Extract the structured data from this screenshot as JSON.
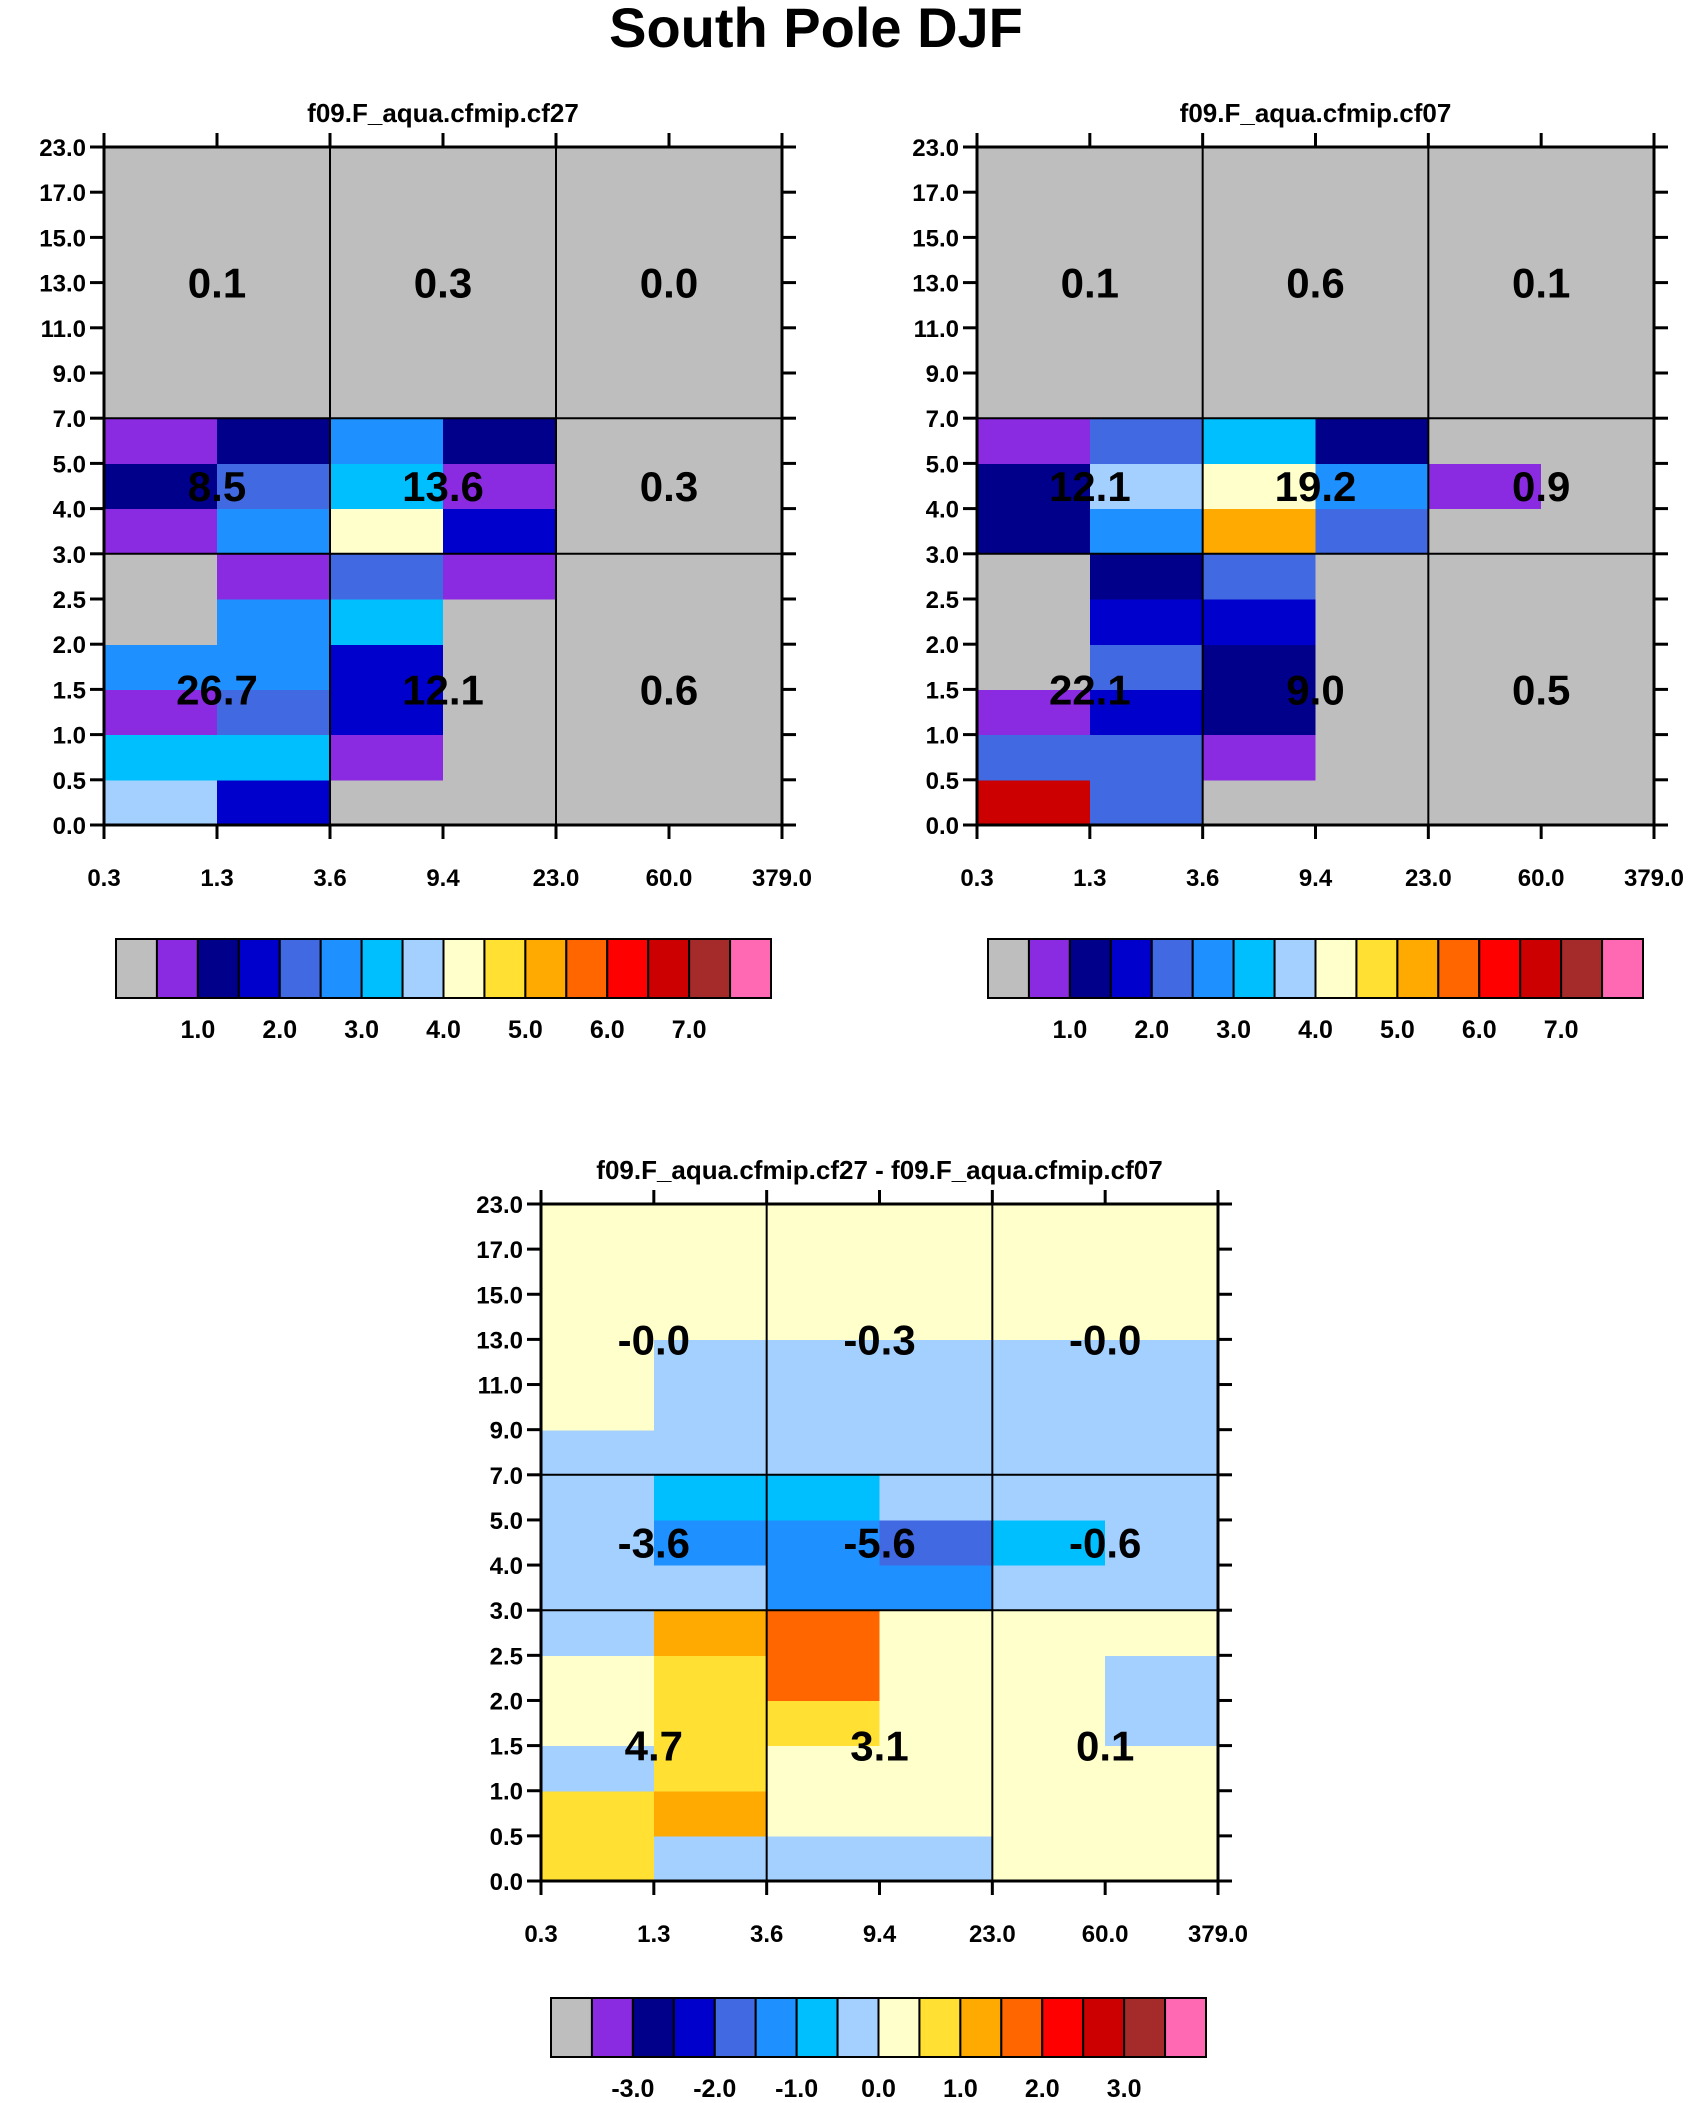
{
  "title": "South Pole DJF",
  "chart_data": [
    {
      "type": "heatmap",
      "title": "f09.F_aqua.cfmip.cf27",
      "x_ticks": [
        "0.3",
        "1.3",
        "3.6",
        "9.4",
        "23.0",
        "60.0",
        "379.0"
      ],
      "y_ticks": [
        "0.0",
        "0.5",
        "1.0",
        "1.5",
        "2.0",
        "2.5",
        "3.0",
        "4.0",
        "5.0",
        "7.0",
        "9.0",
        "11.0",
        "13.0",
        "15.0",
        "17.0",
        "23.0"
      ],
      "cells": [
        [
          7,
          3,
          0,
          0,
          0,
          0
        ],
        [
          6,
          6,
          1,
          0,
          0,
          0
        ],
        [
          1,
          4,
          3,
          0,
          0,
          0
        ],
        [
          5,
          5,
          3,
          0,
          0,
          0
        ],
        [
          0,
          5,
          6,
          0,
          0,
          0
        ],
        [
          0,
          1,
          4,
          1,
          0,
          0
        ],
        [
          1,
          5,
          8,
          3,
          0,
          0
        ],
        [
          2,
          4,
          6,
          1,
          0,
          0
        ],
        [
          1,
          2,
          5,
          2,
          0,
          0
        ],
        [
          0,
          0,
          0,
          0,
          0,
          0
        ],
        [
          0,
          0,
          0,
          0,
          0,
          0
        ],
        [
          0,
          0,
          0,
          0,
          0,
          0
        ],
        [
          0,
          0,
          0,
          0,
          0,
          0
        ],
        [
          0,
          0,
          0,
          0,
          0,
          0
        ],
        [
          0,
          0,
          0,
          0,
          0,
          0
        ]
      ],
      "summary": [
        [
          "26.7",
          "12.1",
          "0.6"
        ],
        [
          "8.5",
          "13.6",
          "0.3"
        ],
        [
          "0.1",
          "0.3",
          "0.0"
        ]
      ],
      "colorbar_labels": [
        "1.0",
        "2.0",
        "3.0",
        "4.0",
        "5.0",
        "6.0",
        "7.0"
      ]
    },
    {
      "type": "heatmap",
      "title": "f09.F_aqua.cfmip.cf07",
      "x_ticks": [
        "0.3",
        "1.3",
        "3.6",
        "9.4",
        "23.0",
        "60.0",
        "379.0"
      ],
      "y_ticks": [
        "0.0",
        "0.5",
        "1.0",
        "1.5",
        "2.0",
        "2.5",
        "3.0",
        "4.0",
        "5.0",
        "7.0",
        "9.0",
        "11.0",
        "13.0",
        "15.0",
        "17.0",
        "23.0"
      ],
      "cells": [
        [
          13,
          4,
          0,
          0,
          0,
          0
        ],
        [
          4,
          4,
          1,
          0,
          0,
          0
        ],
        [
          1,
          3,
          2,
          0,
          0,
          0
        ],
        [
          0,
          4,
          2,
          0,
          0,
          0
        ],
        [
          0,
          3,
          3,
          0,
          0,
          0
        ],
        [
          0,
          2,
          4,
          0,
          0,
          0
        ],
        [
          2,
          5,
          10,
          4,
          0,
          0
        ],
        [
          2,
          7,
          8,
          5,
          1,
          0
        ],
        [
          1,
          4,
          6,
          2,
          0,
          0
        ],
        [
          0,
          0,
          0,
          0,
          0,
          0
        ],
        [
          0,
          0,
          0,
          0,
          0,
          0
        ],
        [
          0,
          0,
          0,
          0,
          0,
          0
        ],
        [
          0,
          0,
          0,
          0,
          0,
          0
        ],
        [
          0,
          0,
          0,
          0,
          0,
          0
        ],
        [
          0,
          0,
          0,
          0,
          0,
          0
        ]
      ],
      "summary": [
        [
          "22.1",
          "9.0",
          "0.5"
        ],
        [
          "12.1",
          "19.2",
          "0.9"
        ],
        [
          "0.1",
          "0.6",
          "0.1"
        ]
      ],
      "colorbar_labels": [
        "1.0",
        "2.0",
        "3.0",
        "4.0",
        "5.0",
        "6.0",
        "7.0"
      ]
    },
    {
      "type": "heatmap",
      "title": "f09.F_aqua.cfmip.cf27 - f09.F_aqua.cfmip.cf07",
      "x_ticks": [
        "0.3",
        "1.3",
        "3.6",
        "9.4",
        "23.0",
        "60.0",
        "379.0"
      ],
      "y_ticks": [
        "0.0",
        "0.5",
        "1.0",
        "1.5",
        "2.0",
        "2.5",
        "3.0",
        "4.0",
        "5.0",
        "7.0",
        "9.0",
        "11.0",
        "13.0",
        "15.0",
        "17.0",
        "23.0"
      ],
      "cells": [
        [
          9,
          7,
          7,
          7,
          8,
          8
        ],
        [
          9,
          10,
          8,
          8,
          8,
          8
        ],
        [
          7,
          9,
          8,
          8,
          8,
          8
        ],
        [
          8,
          9,
          9,
          8,
          8,
          7
        ],
        [
          8,
          9,
          11,
          8,
          8,
          7
        ],
        [
          7,
          10,
          11,
          8,
          8,
          8
        ],
        [
          7,
          7,
          5,
          5,
          7,
          7
        ],
        [
          7,
          5,
          5,
          4,
          6,
          7
        ],
        [
          7,
          6,
          6,
          7,
          7,
          7
        ],
        [
          7,
          7,
          7,
          7,
          7,
          7
        ],
        [
          8,
          7,
          7,
          7,
          7,
          7
        ],
        [
          8,
          7,
          7,
          7,
          7,
          7
        ],
        [
          8,
          8,
          8,
          8,
          8,
          8
        ],
        [
          8,
          8,
          8,
          8,
          8,
          8
        ],
        [
          8,
          8,
          8,
          8,
          8,
          8
        ]
      ],
      "summary": [
        [
          "4.7",
          "3.1",
          "0.1"
        ],
        [
          "-3.6",
          "-5.6",
          "-0.6"
        ],
        [
          "-0.0",
          "-0.3",
          "-0.0"
        ]
      ],
      "colorbar_labels": [
        "-3.0",
        "-2.0",
        "-1.0",
        "0.0",
        "1.0",
        "2.0",
        "3.0"
      ]
    }
  ],
  "palette": [
    "#bebebe",
    "#8a2be2",
    "#00008b",
    "#0000cd",
    "#4169e1",
    "#1e90ff",
    "#00bfff",
    "#a3d0fe",
    "#ffffcc",
    "#ffe033",
    "#ffaa00",
    "#ff6600",
    "#ff0000",
    "#cc0000",
    "#a52a2a",
    "#ff69b4"
  ]
}
